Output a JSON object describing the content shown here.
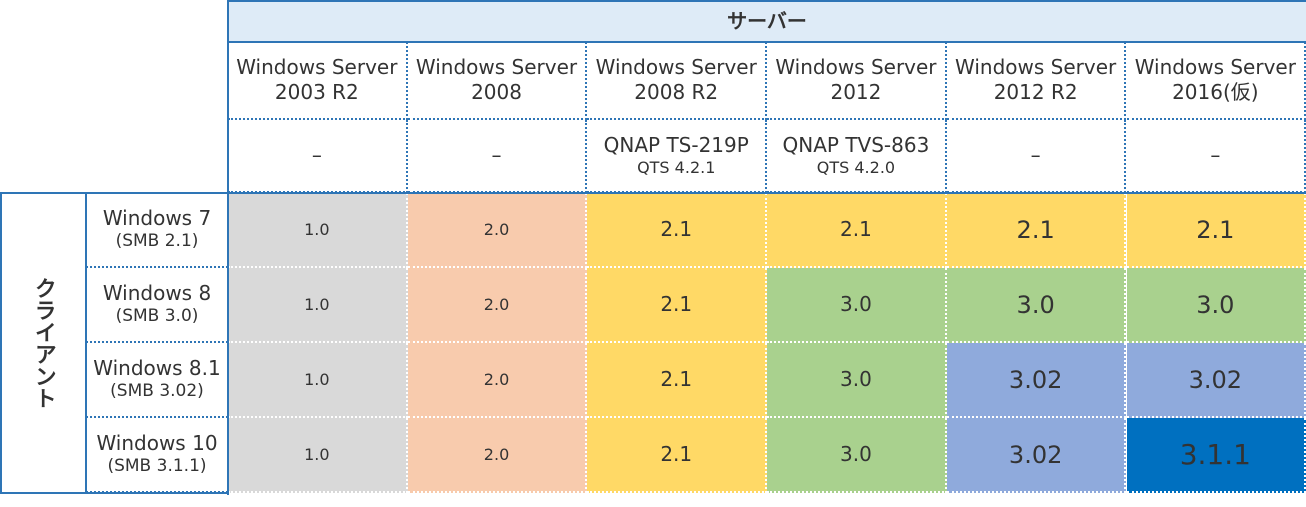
{
  "header": {
    "title": "サーバー",
    "client_label": "クライアント"
  },
  "servers": [
    {
      "name": [
        "Windows Server",
        "2003 R2"
      ],
      "nas": [
        "–"
      ]
    },
    {
      "name": [
        "Windows Server",
        "2008"
      ],
      "nas": [
        "–"
      ]
    },
    {
      "name": [
        "Windows Server",
        "2008 R2"
      ],
      "nas": [
        "QNAP TS-219P",
        "QTS 4.2.1"
      ]
    },
    {
      "name": [
        "Windows Server",
        "2012"
      ],
      "nas": [
        "QNAP TVS-863",
        "QTS 4.2.0"
      ]
    },
    {
      "name": [
        "Windows Server",
        "2012 R2"
      ],
      "nas": [
        "–"
      ]
    },
    {
      "name": [
        "Windows Server",
        "2016(仮)"
      ],
      "nas": [
        "–"
      ]
    }
  ],
  "rows": [
    {
      "client": [
        "Windows 7",
        "(SMB 2.1)"
      ],
      "cells": [
        {
          "text": "1.0",
          "color": "#d9d9d9"
        },
        {
          "text": "2.0",
          "color": "#f8cbad"
        },
        {
          "text": "2.1",
          "color": "#ffd966"
        },
        {
          "text": "2.1",
          "color": "#ffd966"
        },
        {
          "text": "2.1",
          "color": "#ffd966"
        },
        {
          "text": "2.1",
          "color": "#ffd966"
        }
      ]
    },
    {
      "client": [
        "Windows 8",
        "(SMB 3.0)"
      ],
      "cells": [
        {
          "text": "1.0",
          "color": "#d9d9d9"
        },
        {
          "text": "2.0",
          "color": "#f8cbad"
        },
        {
          "text": "2.1",
          "color": "#ffd966"
        },
        {
          "text": "3.0",
          "color": "#a9d18e"
        },
        {
          "text": "3.0",
          "color": "#a9d18e"
        },
        {
          "text": "3.0",
          "color": "#a9d18e"
        }
      ]
    },
    {
      "client": [
        "Windows 8.1",
        "(SMB 3.02)"
      ],
      "cells": [
        {
          "text": "1.0",
          "color": "#d9d9d9"
        },
        {
          "text": "2.0",
          "color": "#f8cbad"
        },
        {
          "text": "2.1",
          "color": "#ffd966"
        },
        {
          "text": "3.0",
          "color": "#a9d18e"
        },
        {
          "text": "3.02",
          "color": "#8faadc"
        },
        {
          "text": "3.02",
          "color": "#8faadc"
        }
      ]
    },
    {
      "client": [
        "Windows 10",
        "(SMB 3.1.1)"
      ],
      "cells": [
        {
          "text": "1.0",
          "color": "#d9d9d9"
        },
        {
          "text": "2.0",
          "color": "#f8cbad"
        },
        {
          "text": "2.1",
          "color": "#ffd966"
        },
        {
          "text": "3.0",
          "color": "#a9d18e"
        },
        {
          "text": "3.02",
          "color": "#8faadc"
        },
        {
          "text": "3.1.1",
          "color": "#0070c0"
        }
      ]
    }
  ]
}
